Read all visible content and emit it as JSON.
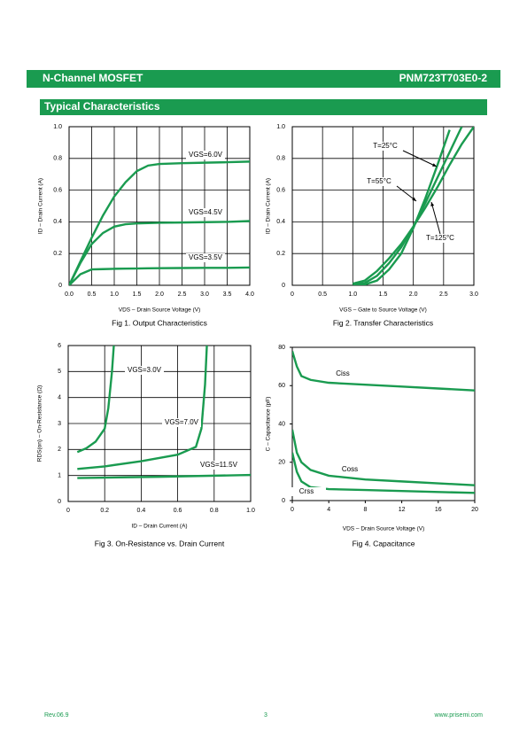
{
  "header": {
    "left": "N-Channel MOSFET",
    "right": "PNM723T703E0-2"
  },
  "section_title": "Typical Characteristics",
  "chart_data": [
    {
      "type": "line",
      "caption": "Fig 1. Output Characteristics",
      "xlabel": "VDS – Drain Source Voltage (V)",
      "ylabel": "ID – Drain Current (A)",
      "xlim": [
        0,
        4
      ],
      "ylim": [
        0,
        1
      ],
      "grid": true,
      "color": "#1a9b50",
      "xticks": [
        {
          "value": 0,
          "label": "0.0"
        },
        0.5,
        {
          "value": 1,
          "label": "1.0"
        },
        1.5,
        {
          "value": 2,
          "label": "2.0"
        },
        2.5,
        {
          "value": 3,
          "label": "3.0"
        },
        3.5,
        {
          "value": 4,
          "label": "4.0"
        }
      ],
      "yticks": [
        0,
        0.2,
        0.4,
        0.6,
        0.8,
        {
          "value": 1,
          "label": "1.0"
        }
      ],
      "x": [
        0,
        0.25,
        0.5,
        0.75,
        1.0,
        1.25,
        1.5,
        1.75,
        2.0,
        2.5,
        3.0,
        3.5,
        4.0
      ],
      "series": [
        {
          "name": "VGS=6.0V",
          "values": [
            0,
            0.15,
            0.3,
            0.44,
            0.56,
            0.65,
            0.72,
            0.755,
            0.765,
            0.77,
            0.773,
            0.776,
            0.78
          ]
        },
        {
          "name": "VGS=4.5V",
          "values": [
            0,
            0.14,
            0.26,
            0.33,
            0.37,
            0.385,
            0.39,
            0.392,
            0.394,
            0.396,
            0.398,
            0.4,
            0.405
          ]
        },
        {
          "name": "VGS=3.5V",
          "values": [
            0,
            0.07,
            0.1,
            0.102,
            0.104,
            0.105,
            0.106,
            0.107,
            0.108,
            0.109,
            0.11,
            0.11,
            0.112
          ]
        }
      ]
    },
    {
      "type": "line",
      "caption": "Fig 2. Transfer Characteristics",
      "xlabel": "VGS – Gate to Source Voltage (V)",
      "ylabel": "ID – Drain Current (A)",
      "xlim": [
        0,
        3
      ],
      "ylim": [
        0,
        1
      ],
      "grid": true,
      "color": "#1a9b50",
      "xticks": [
        0,
        0.5,
        {
          "value": 1,
          "label": "1.0"
        },
        1.5,
        {
          "value": 2,
          "label": "2.0"
        },
        2.5,
        {
          "value": 3,
          "label": "3.0"
        }
      ],
      "yticks": [
        0,
        0.2,
        0.4,
        0.6,
        0.8,
        {
          "value": 1,
          "label": "1.0"
        }
      ],
      "x": [
        1.0,
        1.2,
        1.4,
        1.6,
        1.8,
        2.0,
        2.2,
        2.4,
        2.6,
        2.8,
        3.0
      ],
      "series": [
        {
          "name": "T=25°C",
          "values": [
            0,
            0.005,
            0.03,
            0.1,
            0.2,
            0.36,
            0.55,
            0.76,
            0.98,
            null,
            null
          ]
        },
        {
          "name": "T=55°C",
          "values": [
            0.005,
            0.015,
            0.06,
            0.14,
            0.24,
            0.37,
            0.52,
            0.68,
            0.84,
            1.0,
            null
          ]
        },
        {
          "name": "T=125°C",
          "values": [
            0.01,
            0.03,
            0.09,
            0.17,
            0.26,
            0.37,
            0.49,
            0.62,
            0.76,
            0.89,
            1.0
          ]
        }
      ]
    },
    {
      "type": "line",
      "caption": "Fig 3. On-Resistance vs. Drain Current",
      "xlabel": "ID – Drain Current (A)",
      "ylabel": "RDS(on) – On-Resistance (Ω)",
      "xlim": [
        0,
        1
      ],
      "ylim": [
        0,
        6
      ],
      "grid": true,
      "color": "#1a9b50",
      "xticks": [
        0,
        0.2,
        0.4,
        0.6,
        0.8,
        {
          "value": 1,
          "label": "1.0"
        }
      ],
      "yticks": [
        0,
        1,
        2,
        3,
        4,
        5,
        6
      ],
      "series": [
        {
          "name": "VGS=3.0V",
          "x": [
            0.05,
            0.1,
            0.15,
            0.2,
            0.22,
            0.24,
            0.25
          ],
          "values": [
            1.9,
            2.05,
            2.3,
            2.8,
            3.6,
            5.0,
            6.0
          ]
        },
        {
          "name": "VGS=7.0V",
          "x": [
            0.05,
            0.2,
            0.4,
            0.6,
            0.7,
            0.73,
            0.75,
            0.76
          ],
          "values": [
            1.25,
            1.35,
            1.55,
            1.8,
            2.1,
            2.8,
            4.5,
            6.0
          ]
        },
        {
          "name": "VGS=11.5V",
          "x": [
            0.05,
            0.5,
            1.0
          ],
          "values": [
            0.9,
            0.95,
            1.02
          ]
        }
      ]
    },
    {
      "type": "line",
      "caption": "Fig 4. Capacitance",
      "xlabel": "VDS – Drain Source Voltage (V)",
      "ylabel": "C – Capacitance (pF)",
      "xlim": [
        0,
        20
      ],
      "ylim": [
        0,
        80
      ],
      "grid": false,
      "color": "#1a9b50",
      "xticks": [
        0,
        4,
        8,
        12,
        16,
        20
      ],
      "yticks": [
        0,
        20,
        40,
        60,
        80
      ],
      "x": [
        0,
        0.5,
        1,
        2,
        4,
        8,
        12,
        16,
        20
      ],
      "series": [
        {
          "name": "Ciss",
          "values": [
            78,
            70,
            65,
            63,
            61.5,
            60.5,
            59.5,
            58.5,
            57.5
          ]
        },
        {
          "name": "Coss",
          "values": [
            37,
            25,
            20,
            16,
            13,
            11,
            10,
            9,
            8
          ]
        },
        {
          "name": "Crss",
          "values": [
            25,
            15,
            10,
            7,
            6,
            5.5,
            5,
            4.5,
            4
          ]
        }
      ]
    }
  ],
  "footer": {
    "left": "Rev.06.9",
    "center": "3",
    "right": "www.prisemi.com"
  }
}
